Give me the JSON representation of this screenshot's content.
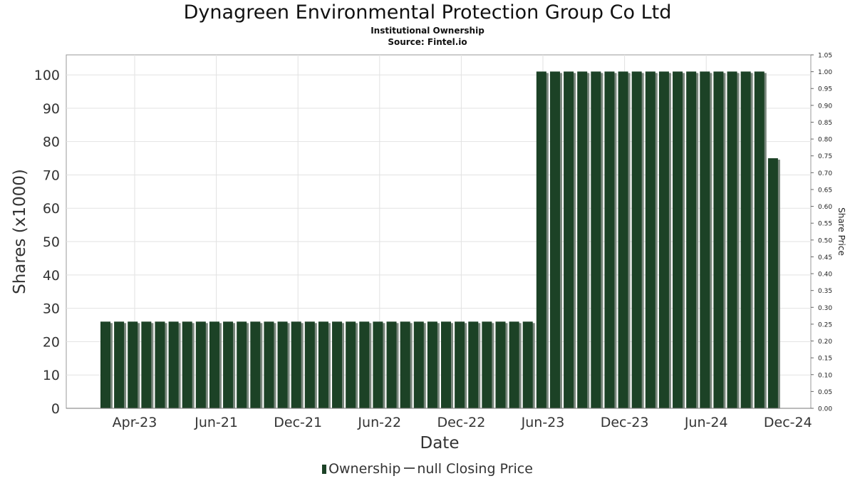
{
  "chart_data": {
    "type": "bar",
    "title": "Dynagreen Environmental Protection Group Co Ltd",
    "subtitle": "Institutional Ownership",
    "source": "Source: Fintel.io",
    "xlabel": "Date",
    "ylabel": "Shares (x1000)",
    "y2label": "Share Price",
    "ylim": [
      0,
      106
    ],
    "y2lim": [
      0,
      1.05
    ],
    "yticks": [
      0,
      10,
      20,
      30,
      40,
      50,
      60,
      70,
      80,
      90,
      100
    ],
    "y2ticks": [
      "0.00",
      "0.05",
      "0.10",
      "0.15",
      "0.20",
      "0.25",
      "0.30",
      "0.35",
      "0.40",
      "0.45",
      "0.50",
      "0.55",
      "0.60",
      "0.65",
      "0.70",
      "0.75",
      "0.80",
      "0.85",
      "0.90",
      "0.95",
      "1.00",
      "1.05"
    ],
    "xticks": [
      "Apr-23",
      "Jun-21",
      "Dec-21",
      "Jun-22",
      "Dec-22",
      "Jun-23",
      "Dec-23",
      "Jun-24",
      "Dec-24"
    ],
    "grid": true,
    "legend_position": "bottom",
    "series": [
      {
        "name": "Ownership",
        "color": "#1c4226",
        "values": [
          26,
          26,
          26,
          26,
          26,
          26,
          26,
          26,
          26,
          26,
          26,
          26,
          26,
          26,
          26,
          26,
          26,
          26,
          26,
          26,
          26,
          26,
          26,
          26,
          26,
          26,
          26,
          26,
          26,
          26,
          26,
          26,
          101,
          101,
          101,
          101,
          101,
          101,
          101,
          101,
          101,
          101,
          101,
          101,
          101,
          101,
          101,
          101,
          101,
          75
        ]
      }
    ],
    "legend_entries": [
      "Ownership",
      "null Closing Price"
    ]
  }
}
